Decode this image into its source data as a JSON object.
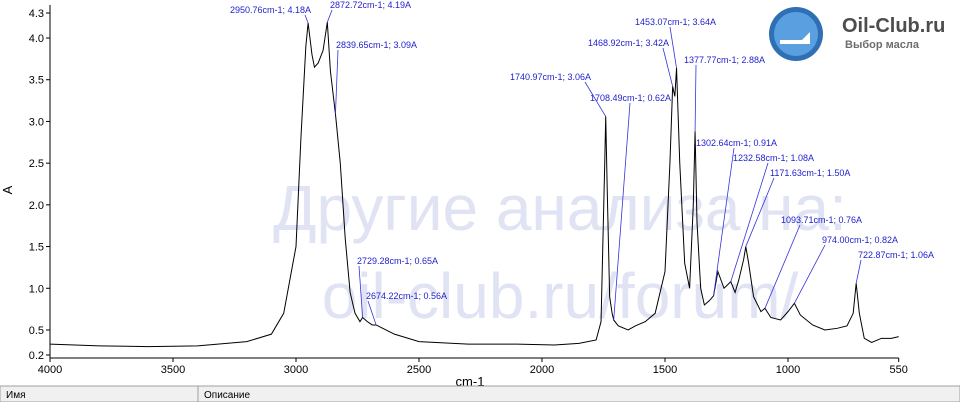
{
  "chart_data": {
    "type": "line",
    "x_label": "cm-1",
    "y_label": "A",
    "xlim": [
      4000,
      550
    ],
    "ylim": [
      0.2,
      4.3
    ],
    "xticks": [
      4000,
      3500,
      3000,
      2500,
      2000,
      1500,
      1000,
      550
    ],
    "yticks": [
      0.2,
      0.5,
      {
        "value": 1,
        "label": "1.0"
      },
      1.5,
      {
        "value": 2,
        "label": "2.0"
      },
      2.5,
      {
        "value": 3,
        "label": "3.0"
      },
      3.5,
      {
        "value": 4,
        "label": "4.0"
      },
      4.3
    ],
    "series": [
      {
        "color": "#000000",
        "x": [
          4000,
          3800,
          3600,
          3400,
          3200,
          3100,
          3050,
          3000,
          2980,
          2960,
          2950.76,
          2935,
          2925,
          2910,
          2890,
          2872.72,
          2860,
          2839.65,
          2820,
          2800,
          2780,
          2760,
          2740,
          2729.28,
          2710,
          2690,
          2674.22,
          2600,
          2500,
          2300,
          2100,
          1950,
          1850,
          1780,
          1760,
          1745,
          1740.97,
          1735,
          1725,
          1715,
          1708.49,
          1690,
          1650,
          1620,
          1580,
          1540,
          1500,
          1480,
          1468.92,
          1460,
          1453.07,
          1440,
          1420,
          1400,
          1385,
          1377.77,
          1370,
          1355,
          1340,
          1320,
          1302.64,
          1285,
          1260,
          1232.58,
          1215,
          1200,
          1180,
          1171.63,
          1160,
          1140,
          1110,
          1093.71,
          1070,
          1030,
          1000,
          974,
          950,
          900,
          850,
          800,
          760,
          735,
          722.87,
          710,
          690,
          660,
          620,
          580,
          550
        ],
        "values": [
          0.33,
          0.31,
          0.3,
          0.31,
          0.36,
          0.45,
          0.7,
          1.5,
          2.8,
          3.9,
          4.18,
          3.8,
          3.65,
          3.7,
          3.85,
          4.19,
          3.6,
          3.09,
          2.5,
          1.6,
          0.95,
          0.7,
          0.6,
          0.65,
          0.6,
          0.56,
          0.56,
          0.45,
          0.36,
          0.33,
          0.33,
          0.32,
          0.34,
          0.38,
          0.6,
          2.5,
          3.06,
          2.2,
          0.9,
          0.7,
          0.62,
          0.55,
          0.5,
          0.55,
          0.6,
          0.7,
          1.2,
          2.5,
          3.42,
          3.3,
          3.64,
          2.5,
          1.3,
          1.0,
          2.0,
          2.88,
          1.8,
          1.0,
          0.8,
          0.85,
          0.91,
          1.2,
          1.0,
          1.08,
          0.95,
          1.1,
          1.35,
          1.5,
          1.3,
          0.9,
          0.72,
          0.76,
          0.65,
          0.62,
          0.72,
          0.82,
          0.68,
          0.56,
          0.5,
          0.52,
          0.55,
          0.7,
          1.06,
          0.7,
          0.4,
          0.35,
          0.4,
          0.4,
          0.42
        ]
      }
    ],
    "annotations": [
      {
        "text": "2950.76cm-1; 4.18A",
        "x": 2950.76,
        "y": 4.18
      },
      {
        "text": "2872.72cm-1; 4.19A",
        "x": 2872.72,
        "y": 4.19
      },
      {
        "text": "2839.65cm-1; 3.09A",
        "x": 2839.65,
        "y": 3.09
      },
      {
        "text": "2729.28cm-1; 0.65A",
        "x": 2729.28,
        "y": 0.65
      },
      {
        "text": "2674.22cm-1; 0.56A",
        "x": 2674.22,
        "y": 0.56
      },
      {
        "text": "1740.97cm-1; 3.06A",
        "x": 1740.97,
        "y": 3.06
      },
      {
        "text": "1708.49cm-1; 0.62A",
        "x": 1708.49,
        "y": 0.62
      },
      {
        "text": "1468.92cm-1; 3.42A",
        "x": 1468.92,
        "y": 3.42
      },
      {
        "text": "1453.07cm-1; 3.64A",
        "x": 1453.07,
        "y": 3.64
      },
      {
        "text": "1377.77cm-1; 2.88A",
        "x": 1377.77,
        "y": 2.88
      },
      {
        "text": "1302.64cm-1; 0.91A",
        "x": 1302.64,
        "y": 0.91
      },
      {
        "text": "1232.58cm-1; 1.08A",
        "x": 1232.58,
        "y": 1.08
      },
      {
        "text": "1171.63cm-1; 1.50A",
        "x": 1171.63,
        "y": 1.5
      },
      {
        "text": "1093.71cm-1; 0.76A",
        "x": 1093.71,
        "y": 0.76
      },
      {
        "text": "974.00cm-1; 0.82A",
        "x": 974,
        "y": 0.82
      },
      {
        "text": "722.87cm-1; 1.06A",
        "x": 722.87,
        "y": 1.06
      }
    ]
  },
  "watermark": [
    "Другие анализа на:",
    "oil-club.ru/forum/"
  ],
  "logo": {
    "title": "Oil-Club.ru",
    "subtitle": "Выбор масла"
  },
  "table_header": [
    "Имя",
    "Описание"
  ]
}
